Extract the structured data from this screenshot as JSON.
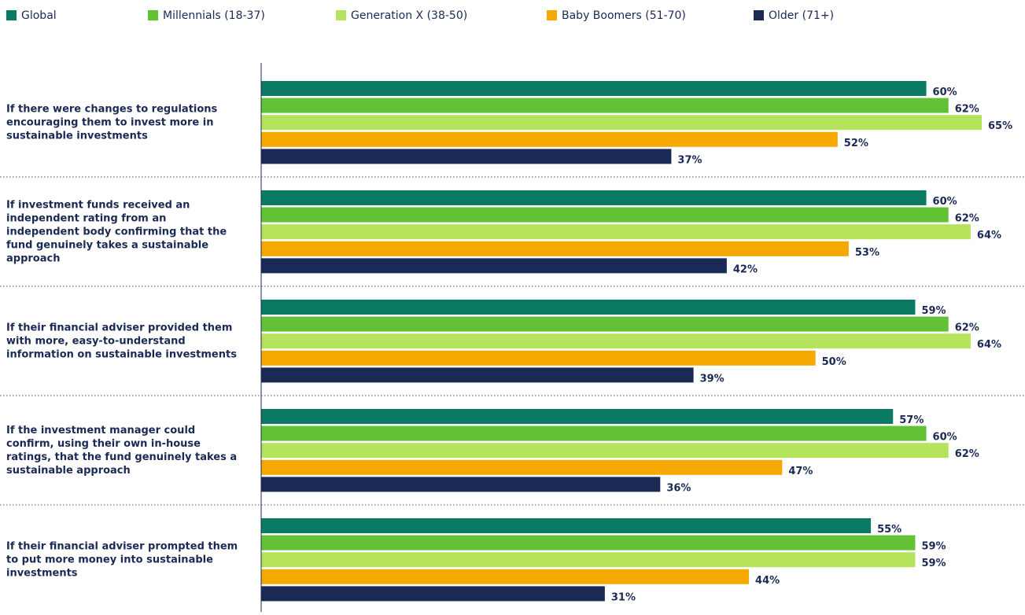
{
  "chart_data": {
    "type": "hbar",
    "categories": [
      "If there were changes to regulations encouraging them to invest more in sustainable investments",
      "If investment funds received an independent rating from an independent body confirming that the fund genuinely takes a sustainable approach",
      "If their financial adviser provided them with more, easy-to-understand information on sustainable investments",
      "If the investment manager could confirm, using their own in-house ratings, that the fund genuinely takes a sustainable approach",
      "If their financial adviser prompted them to put more money into sustainable investments"
    ],
    "series": [
      {
        "name": "Global",
        "color": "#0a7a63",
        "values": [
          60,
          60,
          59,
          57,
          55
        ],
        "value_labels": [
          "60%",
          "60%",
          "59%",
          "57%",
          "55%"
        ]
      },
      {
        "name": "Millennials (18-37)",
        "color": "#62c135",
        "values": [
          62,
          62,
          62,
          60,
          59
        ],
        "value_labels": [
          "62%",
          "62%",
          "62%",
          "60%",
          "59%"
        ]
      },
      {
        "name": "Generation X (38-50)",
        "color": "#b5e35c",
        "values": [
          65,
          64,
          64,
          62,
          59
        ],
        "value_labels": [
          "65%",
          "64%",
          "64%",
          "62%",
          "59%"
        ]
      },
      {
        "name": "Baby Boomers (51-70)",
        "color": "#f5a800",
        "values": [
          52,
          53,
          50,
          47,
          44
        ],
        "value_labels": [
          "52%",
          "53%",
          "50%",
          "47%",
          "44%"
        ]
      },
      {
        "name": "Older (71+)",
        "color": "#1b2a55",
        "values": [
          37,
          42,
          39,
          36,
          31
        ],
        "value_labels": [
          "37%",
          "42%",
          "39%",
          "36%",
          "31%"
        ]
      }
    ],
    "xlim": [
      0,
      65
    ],
    "legend": "top"
  }
}
